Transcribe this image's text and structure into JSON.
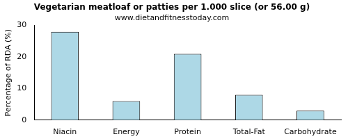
{
  "chart_data": {
    "type": "bar",
    "title": "Vegetarian meatloaf or patties per 1.000 slice (or 56.00 g)",
    "subtitle": "www.dietandfitnesstoday.com",
    "y_label": "Percentage of RDA (%)",
    "categories": [
      "Niacin",
      "Energy",
      "Protein",
      "Total-Fat",
      "Carbohydrate"
    ],
    "values": [
      28,
      6,
      21,
      8,
      3
    ],
    "color": "#add8e6",
    "ylim": [
      0,
      30
    ],
    "yticks": [
      0,
      10,
      20,
      30
    ],
    "grid": false
  }
}
